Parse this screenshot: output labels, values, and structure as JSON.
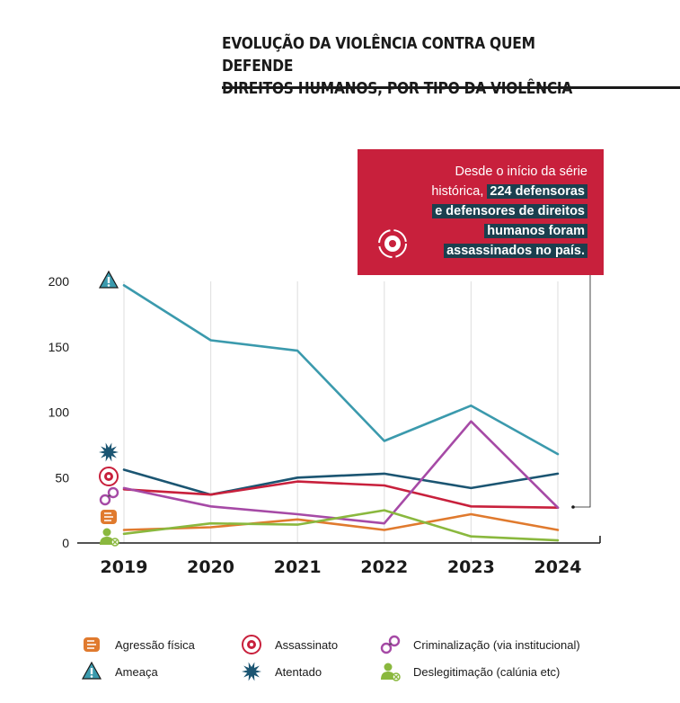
{
  "title_line1": "EVOLUÇÃO DA VIOLÊNCIA CONTRA QUEM DEFENDE",
  "title_line2": "DIREITOS HUMANOS, POR TIPO DA VIOLÊNCIA",
  "callout": {
    "line1": "Desde o início da série",
    "line2_plain": "histórica, ",
    "line2_hl": "224 defensoras",
    "line3": "e defensores de direitos",
    "line4": "humanos foram",
    "line5": "assassinados no país.",
    "icon": "target-icon"
  },
  "colors": {
    "agressao": "#e07a2e",
    "ameaca": "#3b9aad",
    "assassinato": "#c8203c",
    "atentado": "#1b5572",
    "criminalizacao": "#a64aa6",
    "deslegitimacao": "#8ab83e",
    "callout_bg": "#c8203c",
    "callout_hl": "#1b3f4e"
  },
  "chart_data": {
    "type": "line",
    "x": [
      "2019",
      "2020",
      "2021",
      "2022",
      "2023",
      "2024"
    ],
    "ylim": [
      0,
      200
    ],
    "yticks": [
      0,
      50,
      100,
      150,
      200
    ],
    "xlabel": "",
    "ylabel": "",
    "grid": "vertical",
    "legend_position": "bottom",
    "series": [
      {
        "key": "ameaca",
        "name": "Ameaça",
        "icon": "warning-icon",
        "values": [
          197,
          155,
          147,
          78,
          105,
          68
        ]
      },
      {
        "key": "atentado",
        "name": "Atentado",
        "icon": "burst-icon",
        "values": [
          56,
          37,
          50,
          53,
          42,
          53
        ]
      },
      {
        "key": "assassinato",
        "name": "Assassinato",
        "icon": "target-icon",
        "values": [
          41,
          37,
          47,
          44,
          28,
          27
        ]
      },
      {
        "key": "criminalizacao",
        "name": "Criminalização (via institucional)",
        "icon": "handcuffs-icon",
        "values": [
          42,
          28,
          22,
          15,
          93,
          27
        ]
      },
      {
        "key": "agressao",
        "name": "Agressão física",
        "icon": "fist-icon",
        "values": [
          10,
          12,
          18,
          10,
          22,
          10
        ]
      },
      {
        "key": "deslegitimacao",
        "name": "Deslegitimação (calúnia etc)",
        "icon": "person-x-icon",
        "values": [
          7,
          15,
          14,
          25,
          5,
          2
        ]
      }
    ]
  }
}
